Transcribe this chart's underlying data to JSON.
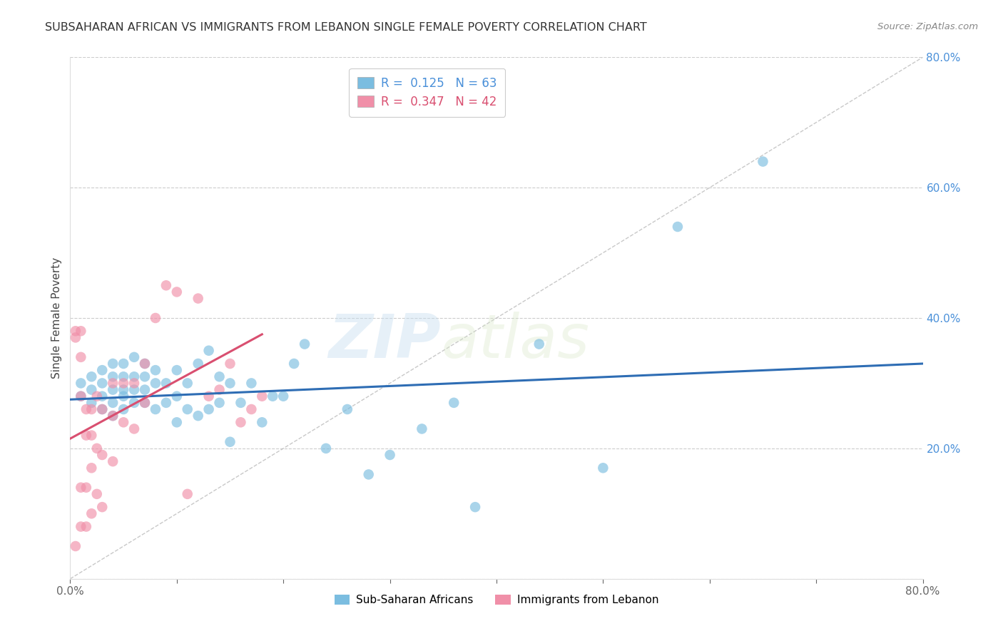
{
  "title": "SUBSAHARAN AFRICAN VS IMMIGRANTS FROM LEBANON SINGLE FEMALE POVERTY CORRELATION CHART",
  "source": "Source: ZipAtlas.com",
  "ylabel": "Single Female Poverty",
  "right_yticks": [
    0.0,
    0.2,
    0.4,
    0.6,
    0.8
  ],
  "right_yticklabels": [
    "",
    "20.0%",
    "40.0%",
    "60.0%",
    "80.0%"
  ],
  "xlim": [
    0.0,
    0.8
  ],
  "ylim": [
    0.0,
    0.8
  ],
  "legend1_R": "0.125",
  "legend1_N": "63",
  "legend2_R": "0.347",
  "legend2_N": "42",
  "color_blue": "#7bbde0",
  "color_pink": "#f08fa8",
  "color_blue_line": "#2e6db4",
  "color_pink_line": "#d94f70",
  "color_diag": "#bbbbbb",
  "blue_scatter_x": [
    0.01,
    0.01,
    0.02,
    0.02,
    0.02,
    0.03,
    0.03,
    0.03,
    0.03,
    0.04,
    0.04,
    0.04,
    0.04,
    0.04,
    0.05,
    0.05,
    0.05,
    0.05,
    0.05,
    0.06,
    0.06,
    0.06,
    0.06,
    0.07,
    0.07,
    0.07,
    0.07,
    0.08,
    0.08,
    0.08,
    0.09,
    0.09,
    0.1,
    0.1,
    0.1,
    0.11,
    0.11,
    0.12,
    0.12,
    0.13,
    0.13,
    0.14,
    0.14,
    0.15,
    0.15,
    0.16,
    0.17,
    0.18,
    0.19,
    0.2,
    0.21,
    0.22,
    0.24,
    0.26,
    0.28,
    0.3,
    0.33,
    0.36,
    0.38,
    0.44,
    0.5,
    0.57,
    0.65
  ],
  "blue_scatter_y": [
    0.28,
    0.3,
    0.27,
    0.29,
    0.31,
    0.26,
    0.28,
    0.3,
    0.32,
    0.25,
    0.27,
    0.29,
    0.31,
    0.33,
    0.26,
    0.28,
    0.29,
    0.31,
    0.33,
    0.27,
    0.29,
    0.31,
    0.34,
    0.27,
    0.29,
    0.31,
    0.33,
    0.26,
    0.3,
    0.32,
    0.27,
    0.3,
    0.24,
    0.28,
    0.32,
    0.26,
    0.3,
    0.25,
    0.33,
    0.26,
    0.35,
    0.27,
    0.31,
    0.21,
    0.3,
    0.27,
    0.3,
    0.24,
    0.28,
    0.28,
    0.33,
    0.36,
    0.2,
    0.26,
    0.16,
    0.19,
    0.23,
    0.27,
    0.11,
    0.36,
    0.17,
    0.54,
    0.64
  ],
  "pink_scatter_x": [
    0.005,
    0.005,
    0.005,
    0.01,
    0.01,
    0.01,
    0.01,
    0.01,
    0.015,
    0.015,
    0.015,
    0.015,
    0.02,
    0.02,
    0.02,
    0.02,
    0.025,
    0.025,
    0.025,
    0.03,
    0.03,
    0.03,
    0.04,
    0.04,
    0.04,
    0.05,
    0.05,
    0.06,
    0.06,
    0.07,
    0.07,
    0.08,
    0.09,
    0.1,
    0.11,
    0.12,
    0.13,
    0.14,
    0.15,
    0.16,
    0.17,
    0.18
  ],
  "pink_scatter_y": [
    0.37,
    0.38,
    0.05,
    0.38,
    0.34,
    0.28,
    0.14,
    0.08,
    0.26,
    0.22,
    0.14,
    0.08,
    0.26,
    0.22,
    0.17,
    0.1,
    0.28,
    0.2,
    0.13,
    0.26,
    0.19,
    0.11,
    0.3,
    0.25,
    0.18,
    0.3,
    0.24,
    0.3,
    0.23,
    0.33,
    0.27,
    0.4,
    0.45,
    0.44,
    0.13,
    0.43,
    0.28,
    0.29,
    0.33,
    0.24,
    0.26,
    0.28
  ],
  "blue_line_x": [
    0.0,
    0.8
  ],
  "blue_line_y": [
    0.275,
    0.33
  ],
  "pink_line_x": [
    0.0,
    0.18
  ],
  "pink_line_y": [
    0.215,
    0.375
  ],
  "diag_line_x": [
    0.0,
    0.8
  ],
  "diag_line_y": [
    0.0,
    0.8
  ],
  "watermark_zip": "ZIP",
  "watermark_atlas": "atlas",
  "legend_label_blue": "Sub-Saharan Africans",
  "legend_label_pink": "Immigrants from Lebanon",
  "xtick_positions": [
    0.0,
    0.1,
    0.2,
    0.3,
    0.4,
    0.5,
    0.6,
    0.7,
    0.8
  ],
  "xtick_labels": [
    "0.0%",
    "",
    "",
    "",
    "",
    "",
    "",
    "",
    "80.0%"
  ]
}
